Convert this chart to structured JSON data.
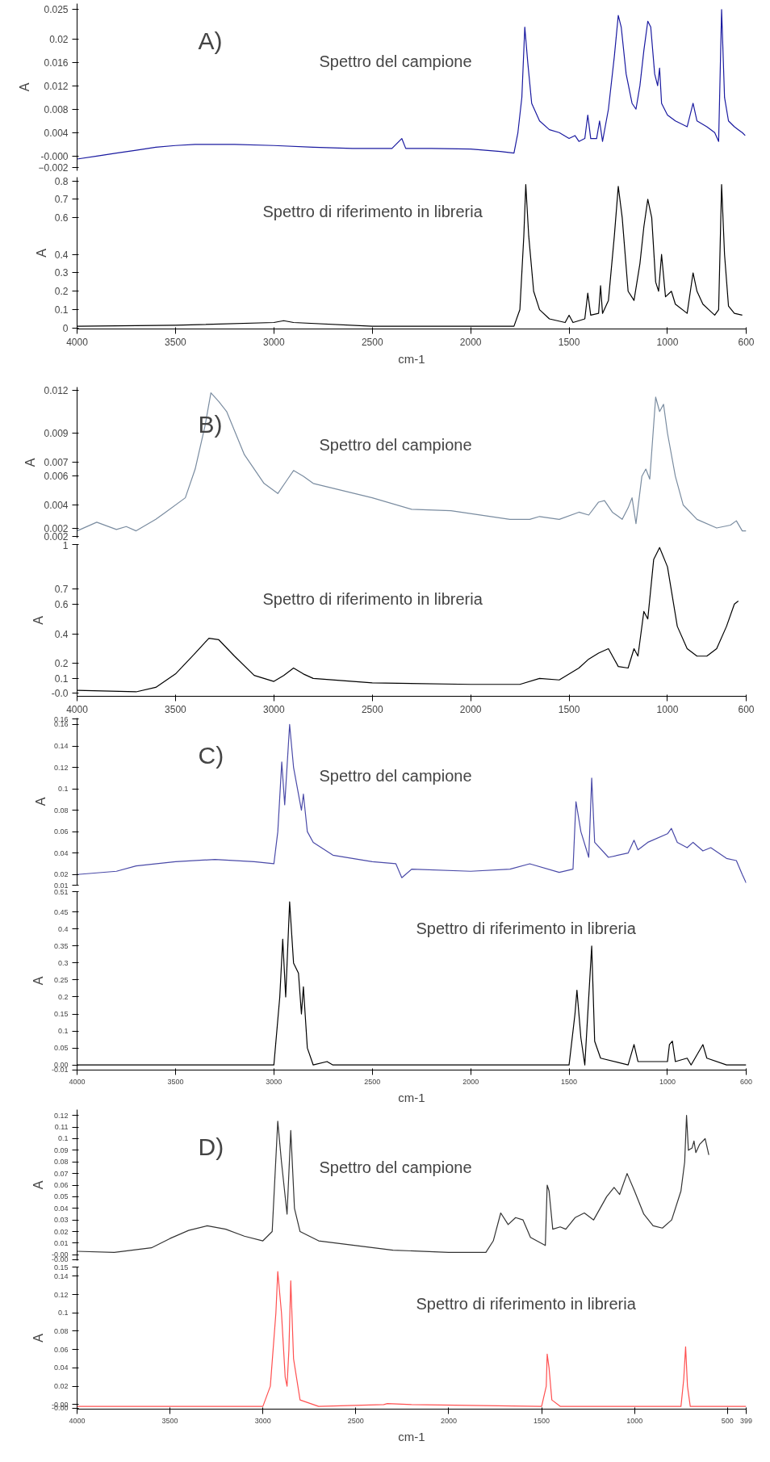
{
  "chart_data": [
    {
      "type": "line",
      "ylabel": "A",
      "annotations": [
        "A)",
        "Spettro del campione"
      ],
      "tick_labels": "y",
      "grid": false,
      "xlim": [
        4000,
        600
      ],
      "xticks": [
        4000,
        3500,
        3000,
        2500,
        2000,
        1500,
        1000,
        600
      ],
      "ylim": [
        -0.0025,
        0.026
      ],
      "yticks": [
        0.025,
        0.02,
        0.016,
        0.012,
        0.008,
        0.004,
        {
          "value": 0,
          "label": "-0.000"
        },
        -0.002
      ],
      "x": [
        4000,
        3900,
        3800,
        3700,
        3600,
        3500,
        3400,
        3200,
        3000,
        2800,
        2600,
        2400,
        2350,
        2330,
        2200,
        2000,
        1850,
        1780,
        1760,
        1740,
        1725,
        1710,
        1690,
        1650,
        1600,
        1550,
        1500,
        1470,
        1450,
        1420,
        1405,
        1390,
        1360,
        1345,
        1330,
        1300,
        1270,
        1250,
        1235,
        1210,
        1180,
        1160,
        1140,
        1120,
        1100,
        1085,
        1065,
        1050,
        1040,
        1030,
        1000,
        960,
        900,
        870,
        850,
        800,
        760,
        740,
        725,
        710,
        690,
        660,
        640,
        620,
        605
      ],
      "series": [
        {
          "color": "#1a1aa0",
          "values": [
            -0.0005,
            0.0,
            0.0005,
            0.001,
            0.0015,
            0.0018,
            0.002,
            0.002,
            0.0018,
            0.0015,
            0.0013,
            0.0013,
            0.003,
            0.0013,
            0.0013,
            0.0012,
            0.0008,
            0.0005,
            0.004,
            0.01,
            0.022,
            0.016,
            0.009,
            0.006,
            0.0045,
            0.004,
            0.003,
            0.0035,
            0.0025,
            0.003,
            0.007,
            0.003,
            0.003,
            0.006,
            0.0025,
            0.008,
            0.017,
            0.024,
            0.022,
            0.014,
            0.009,
            0.008,
            0.012,
            0.018,
            0.023,
            0.022,
            0.014,
            0.012,
            0.015,
            0.009,
            0.007,
            0.006,
            0.005,
            0.009,
            0.006,
            0.005,
            0.004,
            0.0025,
            0.025,
            0.01,
            0.006,
            0.005,
            0.0045,
            0.004,
            0.0035
          ]
        }
      ]
    },
    {
      "type": "line",
      "ylabel": "A",
      "xlabel": "cm-1",
      "annotations": [
        "Spettro di riferimento in libreria"
      ],
      "grid": false,
      "xlim": [
        4000,
        600
      ],
      "xticks": [
        4000,
        3500,
        3000,
        2500,
        2000,
        1500,
        1000,
        600
      ],
      "ylim": [
        -0.005,
        0.82
      ],
      "yticks": [
        0.8,
        0.7,
        0.6,
        0.4,
        0.3,
        0.2,
        0.1,
        0.0
      ],
      "x": [
        4000,
        3500,
        3000,
        2950,
        2900,
        2500,
        2000,
        1780,
        1750,
        1730,
        1720,
        1705,
        1680,
        1650,
        1600,
        1520,
        1500,
        1480,
        1420,
        1405,
        1390,
        1350,
        1340,
        1330,
        1300,
        1270,
        1250,
        1230,
        1200,
        1170,
        1140,
        1120,
        1100,
        1080,
        1060,
        1045,
        1030,
        1010,
        980,
        960,
        900,
        870,
        850,
        820,
        790,
        760,
        740,
        725,
        710,
        690,
        660,
        620
      ],
      "series": [
        {
          "color": "#000000",
          "values": [
            0.01,
            0.015,
            0.03,
            0.04,
            0.03,
            0.01,
            0.01,
            0.01,
            0.1,
            0.5,
            0.78,
            0.5,
            0.2,
            0.1,
            0.05,
            0.03,
            0.07,
            0.03,
            0.05,
            0.19,
            0.07,
            0.08,
            0.23,
            0.08,
            0.15,
            0.5,
            0.77,
            0.6,
            0.2,
            0.15,
            0.35,
            0.55,
            0.7,
            0.6,
            0.25,
            0.2,
            0.4,
            0.17,
            0.2,
            0.13,
            0.08,
            0.3,
            0.2,
            0.13,
            0.1,
            0.07,
            0.1,
            0.78,
            0.4,
            0.12,
            0.08,
            0.07
          ]
        }
      ]
    },
    {
      "type": "line",
      "ylabel": "A",
      "annotations": [
        "B)",
        "Spettro del campione"
      ],
      "tick_labels": "y",
      "grid": false,
      "xlim": [
        4000,
        600
      ],
      "xticks": [
        4000,
        3500,
        3000,
        2500,
        2000,
        1500,
        1000,
        600
      ],
      "ylim": [
        0.0017,
        0.0122
      ],
      "yticks": [
        0.012,
        0.009,
        0.007,
        0.006,
        0.004,
        {
          "value": 0.0024,
          "label": "0.002"
        },
        {
          "value": 0.0018,
          "label": "0.002"
        }
      ],
      "x": [
        4000,
        3900,
        3800,
        3750,
        3700,
        3600,
        3550,
        3450,
        3400,
        3350,
        3320,
        3280,
        3240,
        3150,
        3050,
        2980,
        2930,
        2900,
        2850,
        2800,
        2500,
        2300,
        2100,
        1800,
        1700,
        1650,
        1550,
        1450,
        1400,
        1350,
        1320,
        1280,
        1230,
        1200,
        1180,
        1160,
        1130,
        1110,
        1090,
        1060,
        1040,
        1020,
        1000,
        960,
        920,
        850,
        750,
        680,
        650,
        620,
        600
      ],
      "series": [
        {
          "color": "#7a8ca0",
          "values": [
            0.0022,
            0.0028,
            0.0023,
            0.0025,
            0.0022,
            0.003,
            0.0035,
            0.0045,
            0.0065,
            0.0095,
            0.0118,
            0.0112,
            0.0105,
            0.0075,
            0.0055,
            0.0048,
            0.0058,
            0.0064,
            0.006,
            0.0055,
            0.0045,
            0.0037,
            0.0036,
            0.003,
            0.003,
            0.0032,
            0.003,
            0.0035,
            0.0033,
            0.0042,
            0.0043,
            0.0035,
            0.003,
            0.0038,
            0.0045,
            0.0027,
            0.006,
            0.0065,
            0.0058,
            0.0115,
            0.0105,
            0.011,
            0.009,
            0.006,
            0.004,
            0.003,
            0.0024,
            0.0026,
            0.0029,
            0.0022,
            0.0022
          ]
        }
      ]
    },
    {
      "type": "line",
      "ylabel": "A",
      "annotations": [
        "Spettro di riferimento in libreria"
      ],
      "grid": false,
      "xlim": [
        4000,
        600
      ],
      "xticks": [
        4000,
        3500,
        3000,
        2500,
        2000,
        1500,
        1000,
        600
      ],
      "ylim": [
        -0.02,
        1.0
      ],
      "yticks": [
        1.0,
        0.7,
        0.6,
        0.4,
        0.2,
        0.1,
        {
          "value": 0,
          "label": "-0.0"
        }
      ],
      "x": [
        4000,
        3700,
        3600,
        3500,
        3400,
        3330,
        3280,
        3200,
        3100,
        3000,
        2950,
        2900,
        2850,
        2800,
        2500,
        2000,
        1750,
        1650,
        1550,
        1450,
        1400,
        1350,
        1300,
        1250,
        1200,
        1170,
        1150,
        1120,
        1100,
        1070,
        1040,
        1000,
        950,
        900,
        850,
        800,
        750,
        700,
        660,
        640
      ],
      "series": [
        {
          "color": "#000000",
          "values": [
            0.02,
            0.01,
            0.04,
            0.13,
            0.27,
            0.37,
            0.36,
            0.25,
            0.12,
            0.08,
            0.12,
            0.17,
            0.13,
            0.1,
            0.07,
            0.06,
            0.06,
            0.1,
            0.09,
            0.17,
            0.23,
            0.27,
            0.3,
            0.18,
            0.17,
            0.3,
            0.25,
            0.55,
            0.5,
            0.9,
            0.98,
            0.85,
            0.45,
            0.3,
            0.25,
            0.25,
            0.3,
            0.45,
            0.6,
            0.62
          ]
        }
      ]
    },
    {
      "type": "line",
      "ylabel": "A",
      "annotations": [
        "C)",
        "Spettro del campione"
      ],
      "tick_labels": "y",
      "grid": false,
      "xlim": [
        4000,
        600
      ],
      "xticks": [
        4000,
        3500,
        3000,
        2500,
        2000,
        1500,
        1000,
        600
      ],
      "ylim": [
        0.01,
        0.166
      ],
      "yticks": [
        {
          "value": 0.165,
          "label": "0.16"
        },
        0.16,
        0.14,
        0.12,
        0.1,
        0.08,
        0.06,
        0.04,
        0.02,
        0.01
      ],
      "x": [
        4000,
        3800,
        3700,
        3500,
        3300,
        3100,
        3000,
        2980,
        2960,
        2945,
        2920,
        2900,
        2880,
        2860,
        2850,
        2830,
        2800,
        2700,
        2500,
        2380,
        2350,
        2300,
        2000,
        1800,
        1700,
        1550,
        1480,
        1465,
        1440,
        1400,
        1385,
        1370,
        1300,
        1200,
        1170,
        1150,
        1100,
        1000,
        980,
        950,
        900,
        870,
        820,
        780,
        700,
        650,
        620,
        600
      ],
      "series": [
        {
          "color": "#4a4aa8",
          "values": [
            0.02,
            0.023,
            0.028,
            0.032,
            0.034,
            0.032,
            0.03,
            0.06,
            0.125,
            0.085,
            0.16,
            0.12,
            0.1,
            0.08,
            0.095,
            0.06,
            0.05,
            0.038,
            0.032,
            0.03,
            0.017,
            0.025,
            0.023,
            0.025,
            0.03,
            0.022,
            0.025,
            0.088,
            0.06,
            0.036,
            0.11,
            0.05,
            0.036,
            0.04,
            0.052,
            0.043,
            0.05,
            0.058,
            0.063,
            0.05,
            0.045,
            0.05,
            0.042,
            0.045,
            0.035,
            0.033,
            0.02,
            0.012
          ]
        }
      ]
    },
    {
      "type": "line",
      "ylabel": "A",
      "xlabel": "cm-1",
      "annotations": [
        "Spettro di riferimento in libreria"
      ],
      "grid": false,
      "xlim": [
        4000,
        600
      ],
      "xticks": [
        4000,
        3500,
        3000,
        2500,
        2000,
        1500,
        1000,
        600
      ],
      "ylim": [
        -0.015,
        0.51
      ],
      "yticks": [
        0.51,
        0.45,
        0.4,
        0.35,
        0.3,
        0.25,
        0.2,
        0.15,
        0.1,
        0.05,
        {
          "value": 0,
          "label": "0.00"
        },
        {
          "value": -0.0145,
          "label": "-0.01"
        }
      ],
      "x": [
        4000,
        3000,
        2970,
        2955,
        2940,
        2920,
        2900,
        2875,
        2860,
        2850,
        2830,
        2800,
        2730,
        2700,
        1500,
        1470,
        1460,
        1440,
        1420,
        1385,
        1370,
        1340,
        1200,
        1170,
        1150,
        1000,
        990,
        975,
        960,
        900,
        880,
        820,
        800,
        700,
        600
      ],
      "series": [
        {
          "color": "#000000",
          "values": [
            0.0,
            0.0,
            0.2,
            0.37,
            0.2,
            0.48,
            0.3,
            0.27,
            0.15,
            0.23,
            0.05,
            0.0,
            0.01,
            0.0,
            0.0,
            0.15,
            0.22,
            0.08,
            0.0,
            0.35,
            0.07,
            0.02,
            0.0,
            0.06,
            0.01,
            0.01,
            0.06,
            0.07,
            0.01,
            0.02,
            0.0,
            0.06,
            0.02,
            0.0,
            0.0
          ]
        }
      ]
    },
    {
      "type": "line",
      "ylabel": "A",
      "annotations": [
        "D)",
        "Spettro del campione"
      ],
      "tick_labels": "y",
      "grid": false,
      "xlim": [
        4000,
        399
      ],
      "xticks": [
        4000,
        3500,
        3000,
        2500,
        2000,
        1500,
        1000,
        500,
        399
      ],
      "ylim": [
        -0.005,
        0.125
      ],
      "yticks": [
        0.12,
        0.11,
        0.1,
        0.09,
        0.08,
        0.07,
        0.06,
        0.05,
        0.04,
        0.03,
        0.02,
        0.01,
        {
          "value": 0,
          "label": "-0.00"
        },
        {
          "value": -0.004,
          "label": "-0.00"
        }
      ],
      "x": [
        4000,
        3800,
        3600,
        3500,
        3400,
        3300,
        3200,
        3100,
        3000,
        2950,
        2920,
        2900,
        2870,
        2850,
        2830,
        2800,
        2700,
        2500,
        2300,
        2000,
        1800,
        1760,
        1720,
        1680,
        1640,
        1600,
        1560,
        1480,
        1470,
        1460,
        1440,
        1400,
        1370,
        1320,
        1270,
        1220,
        1150,
        1110,
        1080,
        1040,
        1000,
        950,
        900,
        850,
        800,
        750,
        730,
        720,
        710,
        690,
        680,
        670,
        650,
        620,
        600
      ],
      "series": [
        {
          "color": "#333333",
          "values": [
            0.003,
            0.002,
            0.006,
            0.014,
            0.021,
            0.025,
            0.022,
            0.016,
            0.012,
            0.02,
            0.115,
            0.08,
            0.035,
            0.107,
            0.04,
            0.02,
            0.012,
            0.008,
            0.004,
            0.002,
            0.002,
            0.012,
            0.036,
            0.026,
            0.032,
            0.03,
            0.015,
            0.008,
            0.06,
            0.055,
            0.022,
            0.024,
            0.022,
            0.032,
            0.036,
            0.03,
            0.05,
            0.058,
            0.052,
            0.07,
            0.055,
            0.035,
            0.025,
            0.023,
            0.03,
            0.055,
            0.08,
            0.12,
            0.09,
            0.092,
            0.098,
            0.088,
            0.095,
            0.1,
            0.086
          ]
        }
      ]
    },
    {
      "type": "line",
      "ylabel": "A",
      "xlabel": "cm-1",
      "annotations": [
        "Spettro di riferimento in libreria"
      ],
      "grid": false,
      "xlim": [
        4000,
        399
      ],
      "xticks": [
        4000,
        3500,
        3000,
        2500,
        2000,
        1500,
        1000,
        500,
        399
      ],
      "ylim": [
        -0.005,
        0.15
      ],
      "yticks": [
        0.15,
        0.14,
        0.12,
        0.1,
        0.08,
        0.06,
        0.04,
        0.02,
        {
          "value": 0,
          "label": "-0.00"
        },
        {
          "value": -0.004,
          "label": "-0.00"
        }
      ],
      "x": [
        4000,
        3000,
        2960,
        2930,
        2920,
        2900,
        2880,
        2870,
        2860,
        2850,
        2835,
        2800,
        2700,
        2350,
        2330,
        2200,
        1500,
        1475,
        1470,
        1460,
        1445,
        1400,
        750,
        735,
        725,
        715,
        700,
        399
      ],
      "series": [
        {
          "color": "#ff5050",
          "values": [
            -0.002,
            -0.002,
            0.02,
            0.1,
            0.145,
            0.1,
            0.03,
            0.02,
            0.06,
            0.135,
            0.05,
            0.005,
            -0.002,
            0.0,
            0.001,
            0.0,
            -0.002,
            0.02,
            0.055,
            0.04,
            0.005,
            -0.002,
            -0.002,
            0.028,
            0.063,
            0.02,
            -0.002,
            -0.002
          ]
        }
      ]
    }
  ]
}
